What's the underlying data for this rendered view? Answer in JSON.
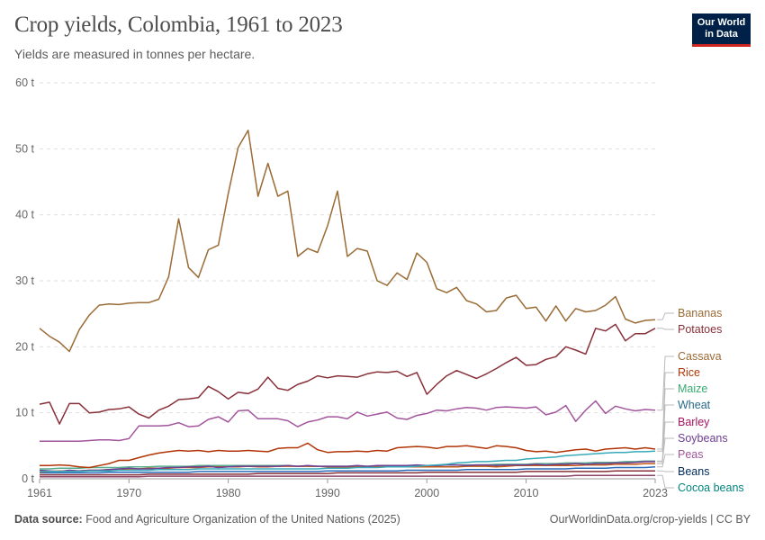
{
  "header": {
    "title": "Crop yields, Colombia, 1961 to 2023",
    "subtitle": "Yields are measured in tonnes per hectare."
  },
  "logo": {
    "line1": "Our World",
    "line2": "in Data",
    "bg": "#002147",
    "accent": "#ce261e"
  },
  "footer": {
    "source_label": "Data source:",
    "source_text": "Food and Agriculture Organization of the United Nations (2025)",
    "right_text": "OurWorldinData.org/crop-yields | CC BY"
  },
  "chart_data": {
    "type": "line",
    "title": "Crop yields, Colombia, 1961 to 2023",
    "subtitle": "Yields are measured in tonnes per hectare.",
    "xlabel": "",
    "ylabel": "",
    "xlim": [
      1961,
      2023
    ],
    "ylim": [
      0,
      60
    ],
    "x_ticks": [
      1961,
      1970,
      1980,
      1990,
      2000,
      2010,
      2023
    ],
    "y_ticks": [
      0,
      10,
      20,
      30,
      40,
      50,
      60
    ],
    "y_tick_labels": [
      "0 t",
      "10 t",
      "20 t",
      "30 t",
      "40 t",
      "50 t",
      "60 t"
    ],
    "grid": "horizontal dashed",
    "legend_placement": "right, end-of-line labels",
    "x": [
      1961,
      1962,
      1963,
      1964,
      1965,
      1966,
      1967,
      1968,
      1969,
      1970,
      1971,
      1972,
      1973,
      1974,
      1975,
      1976,
      1977,
      1978,
      1979,
      1980,
      1981,
      1982,
      1983,
      1984,
      1985,
      1986,
      1987,
      1988,
      1989,
      1990,
      1991,
      1992,
      1993,
      1994,
      1995,
      1996,
      1997,
      1998,
      1999,
      2000,
      2001,
      2002,
      2003,
      2004,
      2005,
      2006,
      2007,
      2008,
      2009,
      2010,
      2011,
      2012,
      2013,
      2014,
      2015,
      2016,
      2017,
      2018,
      2019,
      2020,
      2021,
      2022,
      2023
    ],
    "series": [
      {
        "name": "Bananas",
        "color": "#9a6b35",
        "values": [
          22.8,
          21.6,
          20.7,
          19.3,
          22.6,
          24.8,
          26.3,
          26.5,
          26.4,
          26.6,
          26.7,
          26.7,
          27.2,
          30.6,
          39.4,
          32.0,
          30.5,
          34.7,
          35.4,
          43.2,
          50.2,
          52.8,
          42.8,
          47.8,
          42.8,
          43.6,
          33.7,
          34.9,
          34.3,
          38.3,
          43.6,
          33.7,
          34.9,
          34.5,
          30.0,
          29.3,
          31.2,
          30.2,
          34.2,
          32.8,
          28.8,
          28.2,
          29.0,
          27.0,
          26.5,
          25.3,
          25.5,
          27.4,
          27.8,
          25.8,
          26.0,
          23.9,
          26.2,
          23.9,
          25.8,
          25.3,
          25.5,
          26.3,
          27.6,
          24.2,
          23.6,
          24.0,
          24.1
        ]
      },
      {
        "name": "Potatoes",
        "color": "#883039",
        "values": [
          11.3,
          11.6,
          8.3,
          11.4,
          11.4,
          10.0,
          10.1,
          10.5,
          10.6,
          10.9,
          9.8,
          9.2,
          10.4,
          11.0,
          12.0,
          12.1,
          12.3,
          14.0,
          13.2,
          12.1,
          13.1,
          12.9,
          13.6,
          15.4,
          13.7,
          13.4,
          14.3,
          14.8,
          15.6,
          15.3,
          15.6,
          15.5,
          15.4,
          15.9,
          16.2,
          16.1,
          16.3,
          15.5,
          16.1,
          12.8,
          14.3,
          15.6,
          16.4,
          15.8,
          15.2,
          15.9,
          16.7,
          17.6,
          18.4,
          17.2,
          17.3,
          18.1,
          18.5,
          20.0,
          19.5,
          18.9,
          22.8,
          22.4,
          23.4,
          20.9,
          22.0,
          22.0,
          22.8
        ]
      },
      {
        "name": "Cassava",
        "color": "#a2559c",
        "values": [
          5.7,
          5.7,
          5.7,
          5.7,
          5.7,
          5.8,
          5.9,
          5.9,
          5.8,
          6.1,
          8.0,
          8.0,
          8.0,
          8.1,
          8.5,
          7.9,
          8.0,
          9.0,
          9.4,
          8.6,
          10.3,
          10.4,
          9.1,
          9.1,
          9.1,
          8.8,
          7.9,
          8.6,
          8.9,
          9.4,
          9.4,
          9.1,
          10.1,
          9.5,
          9.8,
          10.1,
          9.2,
          9.0,
          9.6,
          9.9,
          10.4,
          10.3,
          10.6,
          10.8,
          10.7,
          10.4,
          10.8,
          10.9,
          10.8,
          10.7,
          10.9,
          9.7,
          10.1,
          11.1,
          8.7,
          10.4,
          11.8,
          9.9,
          11.0,
          10.6,
          10.3,
          10.5,
          10.4
        ]
      },
      {
        "name": "Rice",
        "color": "#b13507",
        "values": [
          2.0,
          2.0,
          2.1,
          2.0,
          1.8,
          1.7,
          2.0,
          2.3,
          2.8,
          2.8,
          3.2,
          3.6,
          3.9,
          4.1,
          4.3,
          4.2,
          4.3,
          4.1,
          4.3,
          4.2,
          4.2,
          4.3,
          4.2,
          4.1,
          4.6,
          4.7,
          4.7,
          5.4,
          4.4,
          4.0,
          4.1,
          4.1,
          4.2,
          4.1,
          4.3,
          4.2,
          4.7,
          4.8,
          4.9,
          4.8,
          4.6,
          4.9,
          4.9,
          5.0,
          4.8,
          4.6,
          5.0,
          4.9,
          4.7,
          4.3,
          4.1,
          4.2,
          4.0,
          4.2,
          4.4,
          4.5,
          4.2,
          4.5,
          4.6,
          4.7,
          4.5,
          4.7,
          4.5
        ]
      },
      {
        "name": "Maize",
        "color": "#38aaba",
        "values": [
          1.1,
          1.1,
          1.1,
          1.1,
          1.1,
          1.2,
          1.2,
          1.2,
          1.3,
          1.3,
          1.3,
          1.3,
          1.4,
          1.4,
          1.4,
          1.4,
          1.5,
          1.5,
          1.5,
          1.5,
          1.5,
          1.5,
          1.5,
          1.5,
          1.5,
          1.5,
          1.5,
          1.5,
          1.5,
          1.6,
          1.6,
          1.6,
          1.7,
          1.7,
          1.7,
          1.8,
          1.8,
          1.8,
          1.9,
          2.0,
          2.1,
          2.2,
          2.4,
          2.5,
          2.6,
          2.6,
          2.7,
          2.8,
          2.8,
          3.0,
          3.1,
          3.2,
          3.3,
          3.5,
          3.6,
          3.7,
          3.8,
          3.9,
          4.0,
          4.0,
          4.1,
          4.1,
          4.2
        ]
      },
      {
        "name": "Wheat",
        "color": "#6d3e91",
        "values": [
          1.3,
          1.2,
          1.1,
          1.3,
          1.2,
          1.3,
          1.3,
          1.4,
          1.5,
          1.6,
          1.5,
          1.5,
          1.6,
          1.7,
          1.7,
          1.8,
          1.8,
          1.9,
          1.7,
          1.8,
          1.9,
          1.9,
          1.9,
          1.9,
          1.9,
          2.0,
          1.9,
          2.0,
          1.9,
          1.9,
          1.9,
          1.9,
          2.0,
          1.9,
          2.0,
          2.0,
          2.0,
          2.0,
          2.1,
          2.0,
          2.0,
          2.1,
          2.1,
          2.0,
          2.1,
          2.1,
          2.0,
          2.1,
          2.1,
          2.1,
          2.2,
          2.1,
          2.2,
          2.2,
          2.3,
          2.2,
          2.3,
          2.3,
          2.4,
          2.4,
          2.5,
          2.6,
          2.6
        ]
      },
      {
        "name": "Barley",
        "color": "#c05917",
        "values": [
          1.0,
          1.1,
          1.2,
          1.1,
          1.2,
          1.3,
          1.3,
          1.4,
          1.4,
          1.5,
          1.5,
          1.6,
          1.6,
          1.6,
          1.7,
          1.7,
          1.7,
          1.8,
          1.8,
          1.8,
          1.8,
          1.9,
          1.8,
          1.8,
          1.9,
          1.9,
          1.9,
          1.9,
          1.9,
          1.8,
          1.8,
          1.8,
          1.8,
          1.8,
          1.8,
          1.8,
          1.8,
          1.8,
          1.8,
          1.8,
          1.8,
          1.8,
          1.8,
          1.9,
          1.9,
          1.9,
          1.8,
          1.9,
          2.0,
          2.0,
          2.0,
          2.0,
          2.0,
          2.0,
          2.0,
          2.1,
          2.1,
          2.1,
          2.2,
          2.2,
          2.2,
          2.3,
          2.3
        ]
      },
      {
        "name": "Soybeans",
        "color": "#58ac8c",
        "values": [
          1.5,
          1.5,
          1.6,
          1.6,
          1.6,
          1.7,
          1.7,
          1.7,
          1.7,
          1.8,
          1.8,
          1.8,
          1.9,
          1.9,
          1.9,
          1.9,
          2.0,
          2.0,
          2.0,
          2.0,
          2.0,
          2.0,
          2.0,
          2.0,
          2.0,
          2.0,
          1.9,
          1.9,
          1.9,
          1.9,
          1.9,
          1.9,
          1.9,
          1.9,
          1.9,
          2.0,
          2.0,
          2.0,
          2.0,
          2.0,
          2.0,
          2.1,
          2.1,
          2.1,
          2.1,
          2.1,
          2.2,
          2.2,
          2.2,
          2.2,
          2.3,
          2.3,
          2.3,
          2.4,
          2.4,
          2.4,
          2.5,
          2.5,
          2.5,
          2.6,
          2.6,
          2.7,
          2.7
        ]
      },
      {
        "name": "Peas",
        "color": "#286bbb",
        "values": [
          0.9,
          0.9,
          0.9,
          0.9,
          0.9,
          0.9,
          0.9,
          1.0,
          1.0,
          1.0,
          1.0,
          1.0,
          1.0,
          1.0,
          1.0,
          1.0,
          1.1,
          1.1,
          1.1,
          1.1,
          1.1,
          1.1,
          1.1,
          1.1,
          1.1,
          1.1,
          1.1,
          1.1,
          1.1,
          1.2,
          1.2,
          1.2,
          1.2,
          1.2,
          1.2,
          1.2,
          1.2,
          1.3,
          1.3,
          1.3,
          1.3,
          1.3,
          1.3,
          1.4,
          1.4,
          1.4,
          1.4,
          1.4,
          1.4,
          1.5,
          1.5,
          1.5,
          1.5,
          1.5,
          1.6,
          1.6,
          1.6,
          1.6,
          1.7,
          1.7,
          1.7,
          1.7,
          1.8
        ]
      },
      {
        "name": "Beans",
        "color": "#883039",
        "values": [
          0.6,
          0.6,
          0.6,
          0.6,
          0.6,
          0.6,
          0.6,
          0.6,
          0.6,
          0.6,
          0.6,
          0.7,
          0.7,
          0.7,
          0.7,
          0.7,
          0.7,
          0.7,
          0.7,
          0.7,
          0.7,
          0.7,
          0.8,
          0.8,
          0.8,
          0.8,
          0.8,
          0.8,
          0.8,
          0.8,
          0.9,
          0.9,
          0.9,
          0.9,
          0.9,
          0.9,
          0.9,
          0.9,
          0.9,
          1.0,
          1.0,
          1.0,
          1.0,
          1.0,
          1.0,
          1.0,
          1.0,
          1.0,
          1.0,
          1.1,
          1.1,
          1.1,
          1.1,
          1.1,
          1.1,
          1.1,
          1.1,
          1.1,
          1.2,
          1.2,
          1.2,
          1.2,
          1.2
        ]
      },
      {
        "name": "Cocoa beans",
        "color": "#8c4569",
        "values": [
          0.3,
          0.3,
          0.3,
          0.3,
          0.3,
          0.3,
          0.3,
          0.3,
          0.3,
          0.3,
          0.3,
          0.4,
          0.4,
          0.4,
          0.4,
          0.4,
          0.4,
          0.4,
          0.4,
          0.4,
          0.4,
          0.4,
          0.4,
          0.4,
          0.4,
          0.4,
          0.4,
          0.4,
          0.4,
          0.4,
          0.4,
          0.4,
          0.4,
          0.4,
          0.4,
          0.4,
          0.4,
          0.4,
          0.4,
          0.4,
          0.4,
          0.4,
          0.4,
          0.4,
          0.4,
          0.4,
          0.4,
          0.4,
          0.4,
          0.4,
          0.4,
          0.4,
          0.4,
          0.4,
          0.5,
          0.5,
          0.5,
          0.5,
          0.5,
          0.5,
          0.5,
          0.5,
          0.5
        ]
      }
    ]
  }
}
